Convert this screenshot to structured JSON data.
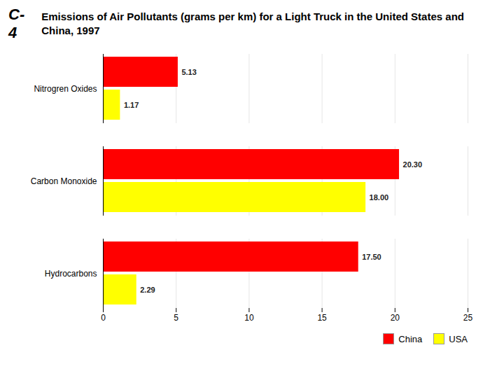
{
  "chart_data": {
    "type": "bar",
    "orientation": "horizontal",
    "title": "Emissions of Air Pollutants (grams per km) for a Light Truck in the United States and China, 1997",
    "annotations": [
      "C-4"
    ],
    "categories": [
      "Nitrogren Oxides",
      "Carbon Monoxide",
      "Hydrocarbons"
    ],
    "series": [
      {
        "name": "China",
        "color": "#ff0000",
        "values": [
          5.13,
          20.3,
          17.5
        ],
        "value_labels": [
          "5.13",
          "20.30",
          "17.50"
        ]
      },
      {
        "name": "USA",
        "color": "#ffff00",
        "values": [
          1.17,
          18.0,
          2.29
        ],
        "value_labels": [
          "1.17",
          "18.00",
          "2.29"
        ]
      }
    ],
    "xlim": [
      0,
      25
    ],
    "xticks": [
      0,
      5,
      10,
      15,
      20,
      25
    ],
    "grid": true,
    "legend": "lower right",
    "data_labels": true
  }
}
